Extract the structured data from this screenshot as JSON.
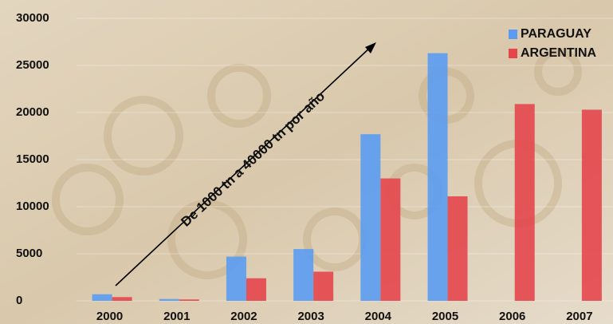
{
  "chart_data": {
    "type": "bar",
    "annotation": "De 1000 tn a 40000 tn por año",
    "categories": [
      "2000",
      "2001",
      "2002",
      "2003",
      "2004",
      "2005",
      "2006",
      "2007"
    ],
    "series": [
      {
        "name": "PARAGUAY",
        "color": "#5b9cf2",
        "values": [
          700,
          200,
          4700,
          5500,
          17700,
          26300,
          null,
          null
        ]
      },
      {
        "name": "ARGENTINA",
        "color": "#e4464c",
        "values": [
          400,
          150,
          2400,
          3100,
          13000,
          11100,
          20900,
          20300
        ]
      }
    ],
    "ylim": [
      0,
      30000
    ],
    "yticks": [
      0,
      5000,
      10000,
      15000,
      20000,
      25000,
      30000
    ],
    "grid": true,
    "legend": "top-right"
  }
}
